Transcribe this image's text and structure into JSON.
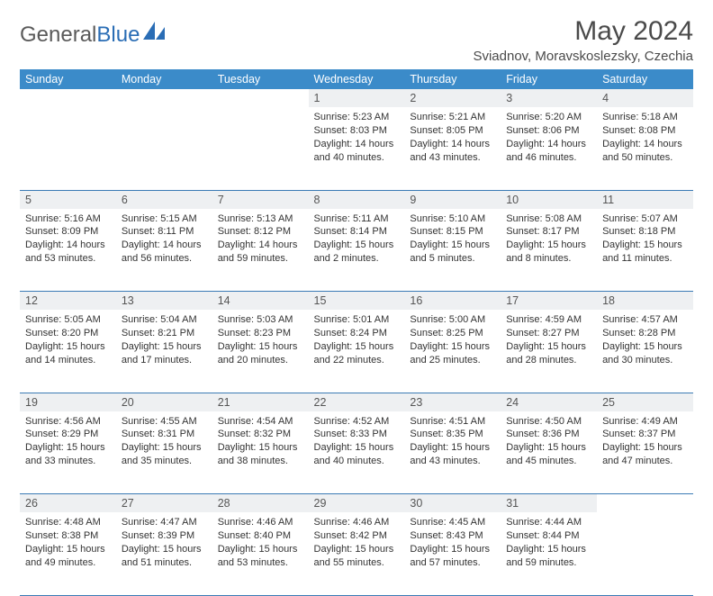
{
  "logo": {
    "text1": "General",
    "text2": "Blue"
  },
  "title": "May 2024",
  "location": "Sviadnov, Moravskoslezsky, Czechia",
  "colors": {
    "header_bg": "#3b8bc9",
    "header_text": "#ffffff",
    "daynum_bg": "#eef0f2",
    "rule": "#3b7bb5",
    "logo_gray": "#5a5a5a",
    "logo_blue": "#2a6db5"
  },
  "weekdays": [
    "Sunday",
    "Monday",
    "Tuesday",
    "Wednesday",
    "Thursday",
    "Friday",
    "Saturday"
  ],
  "labels": {
    "sunrise": "Sunrise:",
    "sunset": "Sunset:",
    "daylight": "Daylight:"
  },
  "weeks": [
    [
      null,
      null,
      null,
      {
        "n": "1",
        "sr": "5:23 AM",
        "ss": "8:03 PM",
        "dl": "14 hours and 40 minutes."
      },
      {
        "n": "2",
        "sr": "5:21 AM",
        "ss": "8:05 PM",
        "dl": "14 hours and 43 minutes."
      },
      {
        "n": "3",
        "sr": "5:20 AM",
        "ss": "8:06 PM",
        "dl": "14 hours and 46 minutes."
      },
      {
        "n": "4",
        "sr": "5:18 AM",
        "ss": "8:08 PM",
        "dl": "14 hours and 50 minutes."
      }
    ],
    [
      {
        "n": "5",
        "sr": "5:16 AM",
        "ss": "8:09 PM",
        "dl": "14 hours and 53 minutes."
      },
      {
        "n": "6",
        "sr": "5:15 AM",
        "ss": "8:11 PM",
        "dl": "14 hours and 56 minutes."
      },
      {
        "n": "7",
        "sr": "5:13 AM",
        "ss": "8:12 PM",
        "dl": "14 hours and 59 minutes."
      },
      {
        "n": "8",
        "sr": "5:11 AM",
        "ss": "8:14 PM",
        "dl": "15 hours and 2 minutes."
      },
      {
        "n": "9",
        "sr": "5:10 AM",
        "ss": "8:15 PM",
        "dl": "15 hours and 5 minutes."
      },
      {
        "n": "10",
        "sr": "5:08 AM",
        "ss": "8:17 PM",
        "dl": "15 hours and 8 minutes."
      },
      {
        "n": "11",
        "sr": "5:07 AM",
        "ss": "8:18 PM",
        "dl": "15 hours and 11 minutes."
      }
    ],
    [
      {
        "n": "12",
        "sr": "5:05 AM",
        "ss": "8:20 PM",
        "dl": "15 hours and 14 minutes."
      },
      {
        "n": "13",
        "sr": "5:04 AM",
        "ss": "8:21 PM",
        "dl": "15 hours and 17 minutes."
      },
      {
        "n": "14",
        "sr": "5:03 AM",
        "ss": "8:23 PM",
        "dl": "15 hours and 20 minutes."
      },
      {
        "n": "15",
        "sr": "5:01 AM",
        "ss": "8:24 PM",
        "dl": "15 hours and 22 minutes."
      },
      {
        "n": "16",
        "sr": "5:00 AM",
        "ss": "8:25 PM",
        "dl": "15 hours and 25 minutes."
      },
      {
        "n": "17",
        "sr": "4:59 AM",
        "ss": "8:27 PM",
        "dl": "15 hours and 28 minutes."
      },
      {
        "n": "18",
        "sr": "4:57 AM",
        "ss": "8:28 PM",
        "dl": "15 hours and 30 minutes."
      }
    ],
    [
      {
        "n": "19",
        "sr": "4:56 AM",
        "ss": "8:29 PM",
        "dl": "15 hours and 33 minutes."
      },
      {
        "n": "20",
        "sr": "4:55 AM",
        "ss": "8:31 PM",
        "dl": "15 hours and 35 minutes."
      },
      {
        "n": "21",
        "sr": "4:54 AM",
        "ss": "8:32 PM",
        "dl": "15 hours and 38 minutes."
      },
      {
        "n": "22",
        "sr": "4:52 AM",
        "ss": "8:33 PM",
        "dl": "15 hours and 40 minutes."
      },
      {
        "n": "23",
        "sr": "4:51 AM",
        "ss": "8:35 PM",
        "dl": "15 hours and 43 minutes."
      },
      {
        "n": "24",
        "sr": "4:50 AM",
        "ss": "8:36 PM",
        "dl": "15 hours and 45 minutes."
      },
      {
        "n": "25",
        "sr": "4:49 AM",
        "ss": "8:37 PM",
        "dl": "15 hours and 47 minutes."
      }
    ],
    [
      {
        "n": "26",
        "sr": "4:48 AM",
        "ss": "8:38 PM",
        "dl": "15 hours and 49 minutes."
      },
      {
        "n": "27",
        "sr": "4:47 AM",
        "ss": "8:39 PM",
        "dl": "15 hours and 51 minutes."
      },
      {
        "n": "28",
        "sr": "4:46 AM",
        "ss": "8:40 PM",
        "dl": "15 hours and 53 minutes."
      },
      {
        "n": "29",
        "sr": "4:46 AM",
        "ss": "8:42 PM",
        "dl": "15 hours and 55 minutes."
      },
      {
        "n": "30",
        "sr": "4:45 AM",
        "ss": "8:43 PM",
        "dl": "15 hours and 57 minutes."
      },
      {
        "n": "31",
        "sr": "4:44 AM",
        "ss": "8:44 PM",
        "dl": "15 hours and 59 minutes."
      },
      null
    ]
  ]
}
